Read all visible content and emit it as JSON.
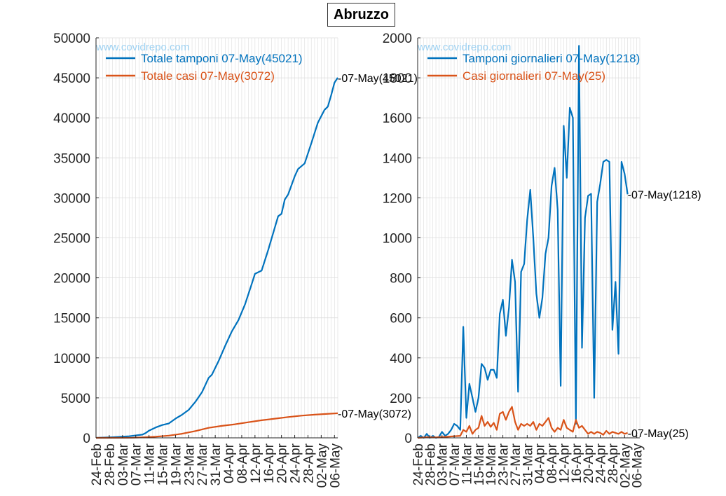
{
  "figure_title": "Abruzzo",
  "watermark": "www.covidrepo.com",
  "colors": {
    "blue": "#0072BD",
    "orange": "#D95319",
    "grid": "#dcdcdc",
    "axis": "#262626",
    "watermark": "#9fd2f2"
  },
  "chart_data": [
    {
      "type": "line",
      "title": "",
      "xlabel": "",
      "ylabel": "",
      "ylim": [
        0,
        50000
      ],
      "yticks": [
        "0",
        "5000",
        "10000",
        "15000",
        "20000",
        "25000",
        "30000",
        "35000",
        "40000",
        "45000",
        "50000"
      ],
      "x_range": [
        "24-Feb",
        "07-May"
      ],
      "xticks": [
        "24-Feb",
        "28-Feb",
        "03-Mar",
        "07-Mar",
        "11-Mar",
        "15-Mar",
        "19-Mar",
        "23-Mar",
        "27-Mar",
        "31-Mar",
        "04-Apr",
        "08-Apr",
        "12-Apr",
        "16-Apr",
        "20-Apr",
        "24-Apr",
        "28-Apr",
        "02-May",
        "06-May"
      ],
      "grid": true,
      "legend_position": "top-left",
      "series": [
        {
          "name": "Totale tamponi 07-May(45021)",
          "color": "blue",
          "end_label": "-07-May(45021)",
          "points": [
            [
              "24-Feb",
              0
            ],
            [
              "29-Feb",
              80
            ],
            [
              "05-Mar",
              200
            ],
            [
              "09-Mar",
              400
            ],
            [
              "10-Mar",
              600
            ],
            [
              "11-Mar",
              900
            ],
            [
              "13-Mar",
              1300
            ],
            [
              "15-Mar",
              1600
            ],
            [
              "17-Mar",
              1800
            ],
            [
              "19-Mar",
              2400
            ],
            [
              "21-Mar",
              2900
            ],
            [
              "23-Mar",
              3500
            ],
            [
              "25-Mar",
              4500
            ],
            [
              "27-Mar",
              5700
            ],
            [
              "29-Mar",
              7500
            ],
            [
              "30-Mar",
              7900
            ],
            [
              "01-Apr",
              9600
            ],
            [
              "03-Apr",
              11500
            ],
            [
              "05-Apr",
              13300
            ],
            [
              "07-Apr",
              14700
            ],
            [
              "09-Apr",
              16700
            ],
            [
              "11-Apr",
              19200
            ],
            [
              "12-Apr",
              20500
            ],
            [
              "14-Apr",
              20900
            ],
            [
              "16-Apr",
              23500
            ],
            [
              "18-Apr",
              26300
            ],
            [
              "19-Apr",
              27700
            ],
            [
              "20-Apr",
              28000
            ],
            [
              "21-Apr",
              29800
            ],
            [
              "22-Apr",
              30400
            ],
            [
              "24-Apr",
              32700
            ],
            [
              "25-Apr",
              33600
            ],
            [
              "27-Apr",
              34300
            ],
            [
              "29-Apr",
              36800
            ],
            [
              "01-May",
              39400
            ],
            [
              "03-May",
              41000
            ],
            [
              "04-May",
              41400
            ],
            [
              "05-May",
              42800
            ],
            [
              "06-May",
              44400
            ],
            [
              "07-May",
              45021
            ]
          ]
        },
        {
          "name": "Totale casi 07-May(3072)",
          "color": "orange",
          "end_label": "-07-May(3072)",
          "points": [
            [
              "24-Feb",
              0
            ],
            [
              "06-Mar",
              20
            ],
            [
              "10-Mar",
              80
            ],
            [
              "13-Mar",
              150
            ],
            [
              "17-Mar",
              280
            ],
            [
              "21-Mar",
              520
            ],
            [
              "25-Mar",
              850
            ],
            [
              "29-Mar",
              1250
            ],
            [
              "02-Apr",
              1500
            ],
            [
              "06-Apr",
              1700
            ],
            [
              "10-Apr",
              1950
            ],
            [
              "14-Apr",
              2200
            ],
            [
              "18-Apr",
              2400
            ],
            [
              "22-Apr",
              2600
            ],
            [
              "26-Apr",
              2780
            ],
            [
              "30-Apr",
              2900
            ],
            [
              "03-May",
              2980
            ],
            [
              "07-May",
              3072
            ]
          ]
        }
      ]
    },
    {
      "type": "line",
      "title": "",
      "xlabel": "",
      "ylabel": "",
      "ylim": [
        0,
        2000
      ],
      "yticks": [
        "0",
        "200",
        "400",
        "600",
        "800",
        "1000",
        "1200",
        "1400",
        "1600",
        "1800",
        "2000"
      ],
      "x_range": [
        "24-Feb",
        "07-May"
      ],
      "xticks": [
        "24-Feb",
        "28-Feb",
        "03-Mar",
        "07-Mar",
        "11-Mar",
        "15-Mar",
        "19-Mar",
        "23-Mar",
        "27-Mar",
        "31-Mar",
        "04-Apr",
        "08-Apr",
        "12-Apr",
        "16-Apr",
        "20-Apr",
        "24-Apr",
        "28-Apr",
        "02-May",
        "06-May"
      ],
      "grid": true,
      "legend_position": "top-left",
      "series": [
        {
          "name": "Tamponi giornalieri 07-May(1218)",
          "color": "blue",
          "end_label": "-07-May(1218)",
          "points": [
            [
              "24-Feb",
              0
            ],
            [
              "25-Feb",
              10
            ],
            [
              "26-Feb",
              0
            ],
            [
              "27-Feb",
              20
            ],
            [
              "28-Feb",
              0
            ],
            [
              "29-Feb",
              10
            ],
            [
              "01-Mar",
              0
            ],
            [
              "02-Mar",
              5
            ],
            [
              "03-Mar",
              30
            ],
            [
              "04-Mar",
              10
            ],
            [
              "05-Mar",
              20
            ],
            [
              "06-Mar",
              40
            ],
            [
              "07-Mar",
              70
            ],
            [
              "08-Mar",
              60
            ],
            [
              "09-Mar",
              40
            ],
            [
              "10-Mar",
              555
            ],
            [
              "11-Mar",
              100
            ],
            [
              "12-Mar",
              270
            ],
            [
              "13-Mar",
              200
            ],
            [
              "14-Mar",
              130
            ],
            [
              "15-Mar",
              200
            ],
            [
              "16-Mar",
              370
            ],
            [
              "17-Mar",
              350
            ],
            [
              "18-Mar",
              290
            ],
            [
              "19-Mar",
              340
            ],
            [
              "20-Mar",
              340
            ],
            [
              "21-Mar",
              300
            ],
            [
              "22-Mar",
              620
            ],
            [
              "23-Mar",
              690
            ],
            [
              "24-Mar",
              510
            ],
            [
              "25-Mar",
              650
            ],
            [
              "26-Mar",
              890
            ],
            [
              "27-Mar",
              780
            ],
            [
              "28-Mar",
              230
            ],
            [
              "29-Mar",
              830
            ],
            [
              "30-Mar",
              870
            ],
            [
              "31-Mar",
              1090
            ],
            [
              "01-Apr",
              1240
            ],
            [
              "02-Apr",
              1000
            ],
            [
              "03-Apr",
              720
            ],
            [
              "04-Apr",
              600
            ],
            [
              "05-Apr",
              700
            ],
            [
              "06-Apr",
              920
            ],
            [
              "07-Apr",
              1000
            ],
            [
              "08-Apr",
              1260
            ],
            [
              "09-Apr",
              1350
            ],
            [
              "10-Apr",
              1140
            ],
            [
              "11-Apr",
              260
            ],
            [
              "12-Apr",
              1560
            ],
            [
              "13-Apr",
              1300
            ],
            [
              "14-Apr",
              1650
            ],
            [
              "15-Apr",
              1600
            ],
            [
              "16-Apr",
              70
            ],
            [
              "17-Apr",
              1960
            ],
            [
              "18-Apr",
              450
            ],
            [
              "19-Apr",
              1100
            ],
            [
              "20-Apr",
              1210
            ],
            [
              "21-Apr",
              1220
            ],
            [
              "22-Apr",
              200
            ],
            [
              "23-Apr",
              1180
            ],
            [
              "24-Apr",
              1270
            ],
            [
              "25-Apr",
              1380
            ],
            [
              "26-Apr",
              1390
            ],
            [
              "27-Apr",
              1380
            ],
            [
              "28-Apr",
              540
            ],
            [
              "29-Apr",
              780
            ],
            [
              "30-Apr",
              420
            ],
            [
              "01-May",
              1380
            ],
            [
              "02-May",
              1320
            ],
            [
              "03-May",
              1218
            ]
          ]
        },
        {
          "name": "Casi giornalieri 07-May(25)",
          "color": "orange",
          "end_label": "-07-May(25)",
          "points": [
            [
              "24-Feb",
              0
            ],
            [
              "27-Feb",
              3
            ],
            [
              "01-Mar",
              2
            ],
            [
              "04-Mar",
              5
            ],
            [
              "07-Mar",
              8
            ],
            [
              "09-Mar",
              10
            ],
            [
              "10-Mar",
              40
            ],
            [
              "11-Mar",
              30
            ],
            [
              "12-Mar",
              60
            ],
            [
              "13-Mar",
              20
            ],
            [
              "14-Mar",
              40
            ],
            [
              "15-Mar",
              50
            ],
            [
              "16-Mar",
              110
            ],
            [
              "17-Mar",
              60
            ],
            [
              "18-Mar",
              80
            ],
            [
              "19-Mar",
              55
            ],
            [
              "20-Mar",
              75
            ],
            [
              "21-Mar",
              40
            ],
            [
              "22-Mar",
              120
            ],
            [
              "23-Mar",
              130
            ],
            [
              "24-Mar",
              90
            ],
            [
              "25-Mar",
              130
            ],
            [
              "26-Mar",
              155
            ],
            [
              "27-Mar",
              80
            ],
            [
              "28-Mar",
              40
            ],
            [
              "29-Mar",
              70
            ],
            [
              "30-Mar",
              60
            ],
            [
              "31-Mar",
              70
            ],
            [
              "01-Apr",
              60
            ],
            [
              "02-Apr",
              80
            ],
            [
              "03-Apr",
              40
            ],
            [
              "04-Apr",
              70
            ],
            [
              "05-Apr",
              60
            ],
            [
              "06-Apr",
              80
            ],
            [
              "07-Apr",
              100
            ],
            [
              "08-Apr",
              50
            ],
            [
              "09-Apr",
              30
            ],
            [
              "10-Apr",
              50
            ],
            [
              "11-Apr",
              40
            ],
            [
              "12-Apr",
              90
            ],
            [
              "13-Apr",
              50
            ],
            [
              "14-Apr",
              40
            ],
            [
              "15-Apr",
              30
            ],
            [
              "16-Apr",
              90
            ],
            [
              "17-Apr",
              50
            ],
            [
              "18-Apr",
              60
            ],
            [
              "19-Apr",
              40
            ],
            [
              "20-Apr",
              20
            ],
            [
              "21-Apr",
              30
            ],
            [
              "22-Apr",
              20
            ],
            [
              "23-Apr",
              30
            ],
            [
              "24-Apr",
              25
            ],
            [
              "25-Apr",
              15
            ],
            [
              "26-Apr",
              35
            ],
            [
              "27-Apr",
              20
            ],
            [
              "28-Apr",
              30
            ],
            [
              "29-Apr",
              25
            ],
            [
              "30-Apr",
              20
            ],
            [
              "01-May",
              30
            ],
            [
              "02-May",
              20
            ],
            [
              "03-May",
              25
            ]
          ]
        }
      ]
    }
  ]
}
